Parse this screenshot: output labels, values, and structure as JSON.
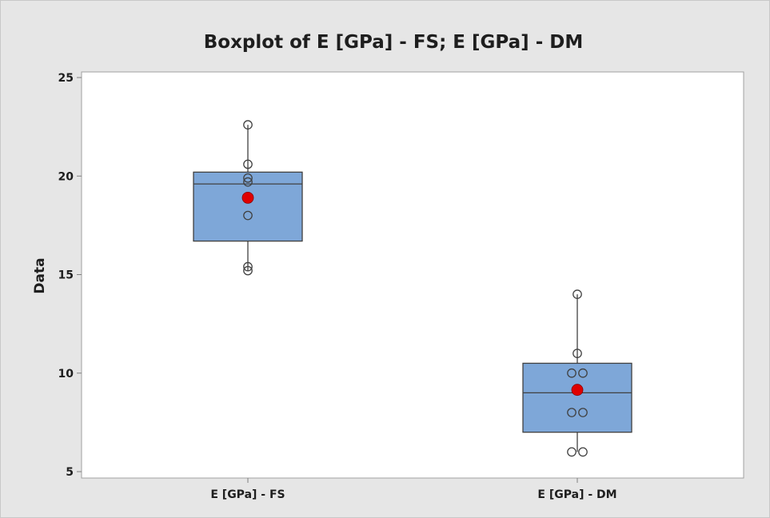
{
  "chart_data": {
    "type": "boxplot",
    "title": "Boxplot of E [GPa] - FS; E [GPa] - DM",
    "xlabel": "",
    "ylabel": "Data",
    "ylim": [
      5,
      25
    ],
    "yticks": [
      5,
      10,
      15,
      20,
      25
    ],
    "grid": false,
    "legend": "none",
    "categories": [
      "E [GPa] - FS",
      "E [GPa] - DM"
    ],
    "series": [
      {
        "category": "E [GPa] - FS",
        "whisker_low": 15.2,
        "q1": 16.7,
        "median": 19.6,
        "q3": 20.2,
        "whisker_high": 22.6,
        "mean": 18.9,
        "points": [
          22.6,
          20.6,
          19.9,
          19.7,
          18.0,
          15.4,
          15.2
        ]
      },
      {
        "category": "E [GPa] - DM",
        "whisker_low": 6.0,
        "q1": 7.0,
        "median": 9.0,
        "q3": 10.5,
        "whisker_high": 14.0,
        "mean": 9.15,
        "points": [
          14.0,
          11.0,
          10.0,
          10.0,
          8.0,
          8.0,
          6.0,
          6.0
        ]
      }
    ],
    "colors": {
      "background": "#e6e6e6",
      "plot_area": "#ffffff",
      "box_fill": "#7ea7d8",
      "box_stroke": "#404040",
      "mean_marker": "#e00000",
      "point_stroke": "#404040",
      "axis": "#808080"
    }
  }
}
